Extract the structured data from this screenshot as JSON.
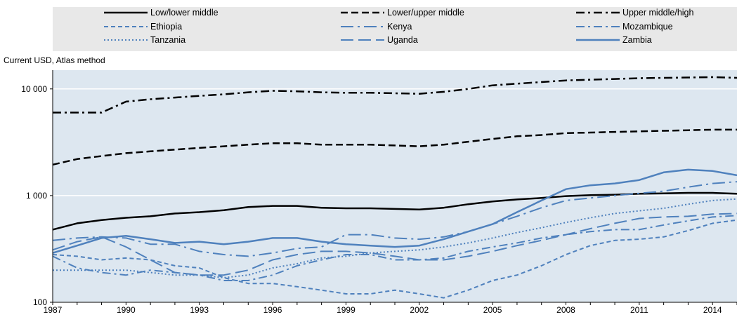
{
  "chart_data": {
    "type": "line",
    "title": "",
    "ylabel": "Current USD, Atlas method",
    "xlabel": "",
    "y_scale": "log",
    "ylim": [
      100,
      15000
    ],
    "xlim": [
      1987,
      2015
    ],
    "x_ticks": [
      1987,
      1990,
      1993,
      1996,
      1999,
      2002,
      2005,
      2008,
      2011,
      2014
    ],
    "y_ticks": [
      100,
      1000,
      10000
    ],
    "y_tick_labels": [
      "100",
      "1 000",
      "10 000"
    ],
    "grid": "horizontal",
    "legend_position": "top",
    "x": [
      1987,
      1988,
      1989,
      1990,
      1991,
      1992,
      1993,
      1994,
      1995,
      1996,
      1997,
      1998,
      1999,
      2000,
      2001,
      2002,
      2003,
      2004,
      2005,
      2006,
      2007,
      2008,
      2009,
      2010,
      2011,
      2012,
      2013,
      2014,
      2015
    ],
    "series": [
      {
        "name": "Low/lower middle",
        "color": "#000000",
        "dash": "solid",
        "width": 2.5,
        "values": [
          480,
          550,
          590,
          620,
          640,
          680,
          700,
          730,
          780,
          800,
          800,
          770,
          760,
          760,
          750,
          740,
          770,
          830,
          880,
          920,
          950,
          990,
          1010,
          1020,
          1040,
          1050,
          1060,
          1060,
          1040
        ]
      },
      {
        "name": "Lower/upper middle",
        "color": "#000000",
        "dash": "dash",
        "width": 2.5,
        "values": [
          1950,
          2200,
          2350,
          2500,
          2600,
          2700,
          2800,
          2900,
          3000,
          3100,
          3100,
          3000,
          3000,
          3000,
          2950,
          2900,
          3000,
          3200,
          3400,
          3600,
          3700,
          3850,
          3900,
          3950,
          4000,
          4050,
          4100,
          4150,
          4150
        ]
      },
      {
        "name": "Upper middle/high",
        "color": "#000000",
        "dash": "dashdot",
        "width": 2.5,
        "values": [
          6000,
          6000,
          6000,
          7600,
          8000,
          8300,
          8600,
          8900,
          9300,
          9600,
          9500,
          9300,
          9200,
          9200,
          9100,
          9000,
          9400,
          10000,
          10800,
          11200,
          11600,
          12000,
          12200,
          12400,
          12600,
          12700,
          12800,
          12900,
          12700
        ]
      },
      {
        "name": "Ethiopia",
        "color": "#4f81bd",
        "dash": "shortdash",
        "width": 2,
        "values": [
          280,
          270,
          250,
          260,
          250,
          220,
          210,
          170,
          150,
          150,
          140,
          130,
          120,
          120,
          130,
          120,
          110,
          130,
          160,
          180,
          220,
          280,
          340,
          380,
          390,
          410,
          470,
          550,
          590
        ]
      },
      {
        "name": "Kenya",
        "color": "#4f81bd",
        "dash": "longdashdot",
        "width": 2,
        "values": [
          380,
          400,
          410,
          400,
          350,
          350,
          300,
          280,
          270,
          290,
          320,
          330,
          430,
          430,
          400,
          390,
          410,
          460,
          540,
          640,
          770,
          900,
          950,
          1000,
          1050,
          1100,
          1200,
          1300,
          1350
        ]
      },
      {
        "name": "Mozambique",
        "color": "#4f81bd",
        "dash": "dashdot",
        "width": 2,
        "values": [
          270,
          210,
          190,
          180,
          200,
          190,
          180,
          160,
          160,
          180,
          220,
          250,
          280,
          280,
          250,
          250,
          260,
          300,
          330,
          360,
          400,
          430,
          460,
          480,
          480,
          530,
          580,
          630,
          650
        ]
      },
      {
        "name": "Tanzania",
        "color": "#4f81bd",
        "dash": "dot",
        "width": 2,
        "values": [
          200,
          200,
          200,
          200,
          190,
          180,
          180,
          170,
          180,
          210,
          230,
          260,
          270,
          290,
          300,
          310,
          330,
          360,
          400,
          450,
          500,
          560,
          620,
          680,
          720,
          760,
          830,
          900,
          930
        ]
      },
      {
        "name": "Uganda",
        "color": "#4f81bd",
        "dash": "longdash",
        "width": 2,
        "values": [
          310,
          370,
          410,
          330,
          250,
          190,
          180,
          180,
          200,
          250,
          280,
          300,
          300,
          290,
          270,
          250,
          250,
          270,
          300,
          340,
          380,
          430,
          490,
          550,
          610,
          630,
          640,
          670,
          680
        ]
      },
      {
        "name": "Zambia",
        "color": "#4f81bd",
        "dash": "solid",
        "width": 2.5,
        "values": [
          290,
          340,
          400,
          420,
          390,
          360,
          370,
          350,
          370,
          400,
          400,
          370,
          350,
          340,
          330,
          340,
          390,
          460,
          540,
          700,
          900,
          1150,
          1250,
          1300,
          1400,
          1650,
          1750,
          1700,
          1550
        ]
      }
    ]
  }
}
